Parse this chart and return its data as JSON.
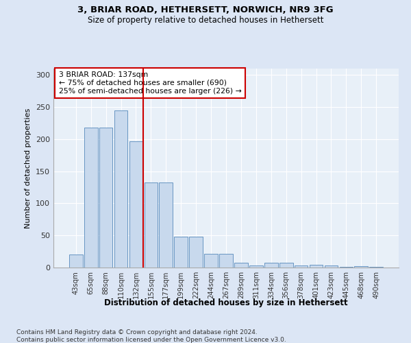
{
  "title1": "3, BRIAR ROAD, HETHERSETT, NORWICH, NR9 3FG",
  "title2": "Size of property relative to detached houses in Hethersett",
  "xlabel": "Distribution of detached houses by size in Hethersett",
  "ylabel": "Number of detached properties",
  "categories": [
    "43sqm",
    "65sqm",
    "88sqm",
    "110sqm",
    "132sqm",
    "155sqm",
    "177sqm",
    "199sqm",
    "222sqm",
    "244sqm",
    "267sqm",
    "289sqm",
    "311sqm",
    "334sqm",
    "356sqm",
    "378sqm",
    "401sqm",
    "423sqm",
    "445sqm",
    "468sqm",
    "490sqm"
  ],
  "values": [
    20,
    218,
    218,
    245,
    197,
    133,
    133,
    48,
    48,
    21,
    21,
    8,
    3,
    8,
    8,
    3,
    4,
    3,
    1,
    2,
    1
  ],
  "bar_color": "#c8d9ed",
  "bar_edge_color": "#5588bb",
  "annotation_line_color": "#cc0000",
  "annotation_box_text": "3 BRIAR ROAD: 137sqm\n← 75% of detached houses are smaller (690)\n25% of semi-detached houses are larger (226) →",
  "annotation_box_color": "white",
  "annotation_box_edge_color": "#cc0000",
  "ylim": [
    0,
    310
  ],
  "yticks": [
    0,
    50,
    100,
    150,
    200,
    250,
    300
  ],
  "footer": "Contains HM Land Registry data © Crown copyright and database right 2024.\nContains public sector information licensed under the Open Government Licence v3.0.",
  "bg_color": "#dce6f5",
  "plot_bg_color": "#e8f0f8",
  "red_line_index": 4.5
}
